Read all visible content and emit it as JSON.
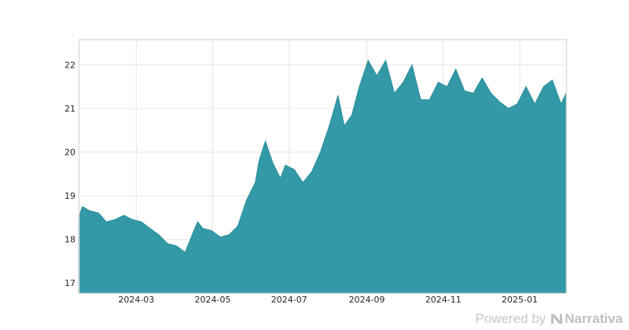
{
  "chart_data": {
    "type": "area",
    "title": "",
    "xlabel": "",
    "ylabel": "",
    "ylim": [
      16.75,
      22.6
    ],
    "grid": true,
    "legend": null,
    "color": "#2e96a3",
    "fill_color": "#3399a6",
    "x_tick_labels": [
      "2024-03",
      "2024-05",
      "2024-07",
      "2024-09",
      "2024-11",
      "2025-01"
    ],
    "y_tick_labels": [
      "17",
      "18",
      "19",
      "20",
      "21",
      "22"
    ],
    "x": [
      "2024-01-15",
      "2024-01-18",
      "2024-01-24",
      "2024-01-31",
      "2024-02-06",
      "2024-02-13",
      "2024-02-20",
      "2024-02-27",
      "2024-03-05",
      "2024-03-12",
      "2024-03-19",
      "2024-03-26",
      "2024-04-02",
      "2024-04-09",
      "2024-04-16",
      "2024-04-19",
      "2024-04-23",
      "2024-04-30",
      "2024-05-07",
      "2024-05-14",
      "2024-05-21",
      "2024-05-28",
      "2024-06-04",
      "2024-06-07",
      "2024-06-12",
      "2024-06-18",
      "2024-06-24",
      "2024-06-28",
      "2024-07-05",
      "2024-07-12",
      "2024-07-19",
      "2024-07-26",
      "2024-08-02",
      "2024-08-09",
      "2024-08-14",
      "2024-08-20",
      "2024-08-26",
      "2024-09-02",
      "2024-09-09",
      "2024-09-16",
      "2024-09-23",
      "2024-09-30",
      "2024-10-07",
      "2024-10-14",
      "2024-10-21",
      "2024-10-28",
      "2024-11-04",
      "2024-11-11",
      "2024-11-18",
      "2024-11-25",
      "2024-12-02",
      "2024-12-09",
      "2024-12-16",
      "2024-12-23",
      "2024-12-30",
      "2025-01-06",
      "2025-01-13",
      "2025-01-20",
      "2025-01-27",
      "2025-02-03",
      "2025-02-07"
    ],
    "values": [
      18.5,
      18.75,
      18.65,
      18.6,
      18.4,
      18.45,
      18.55,
      18.45,
      18.4,
      18.25,
      18.1,
      17.9,
      17.85,
      17.7,
      18.2,
      18.4,
      18.25,
      18.2,
      18.05,
      18.1,
      18.3,
      18.9,
      19.3,
      19.8,
      20.25,
      19.75,
      19.4,
      19.7,
      19.6,
      19.3,
      19.55,
      20.0,
      20.6,
      21.3,
      20.6,
      20.85,
      21.5,
      22.1,
      21.75,
      22.1,
      21.35,
      21.6,
      22.0,
      21.2,
      21.2,
      21.6,
      21.5,
      21.9,
      21.4,
      21.35,
      21.7,
      21.35,
      21.15,
      21.0,
      21.1,
      21.5,
      21.1,
      21.5,
      21.65,
      21.1,
      21.35
    ]
  },
  "footer": {
    "powered_by": "Powered by",
    "brand": "Narrativa"
  }
}
